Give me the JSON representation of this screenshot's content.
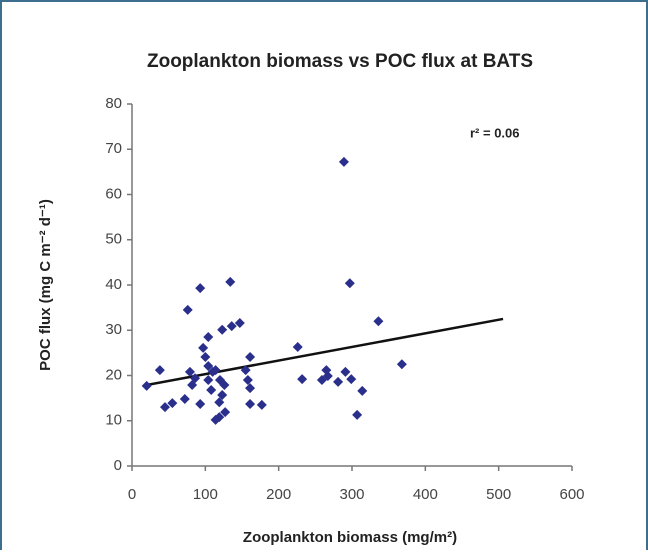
{
  "chart_data": {
    "type": "scatter",
    "title": "Zooplankton biomass vs POC flux at BATS",
    "x_label": "Zooplankton biomass (mg/m²)",
    "y_label": "POC flux (mg C m⁻² d⁻¹)",
    "annotation": "r² = 0.06",
    "color": "#2b2f8c",
    "xlim": [
      0,
      600
    ],
    "xticks": [
      0,
      100,
      200,
      300,
      400,
      500,
      600
    ],
    "ylim": [
      0,
      80
    ],
    "yticks": [
      0,
      10,
      20,
      30,
      40,
      50,
      60,
      70,
      80
    ],
    "x": [
      20,
      38,
      45,
      55,
      72,
      76,
      79,
      82,
      86,
      93,
      93,
      97,
      100,
      104,
      104,
      104,
      108,
      110,
      114,
      114,
      119,
      119,
      120,
      123,
      123,
      126,
      127,
      134,
      136,
      147,
      155,
      158,
      161,
      161,
      161,
      177,
      226,
      232,
      259,
      265,
      267,
      281,
      291,
      289,
      297,
      299,
      307,
      314,
      336,
      368
    ],
    "y": [
      17.7,
      21.2,
      13.0,
      13.9,
      14.8,
      34.5,
      20.8,
      17.9,
      19.4,
      39.3,
      13.7,
      26.1,
      24.1,
      28.5,
      19.0,
      22.1,
      16.8,
      20.8,
      21.2,
      10.2,
      10.8,
      14.1,
      19.0,
      30.1,
      15.7,
      17.9,
      11.9,
      40.7,
      30.9,
      31.6,
      21.2,
      19.0,
      24.1,
      17.2,
      13.7,
      13.5,
      26.3,
      19.2,
      19.0,
      21.2,
      19.9,
      18.6,
      20.8,
      67.2,
      40.4,
      19.2,
      11.3,
      16.6,
      32.0,
      22.5
    ],
    "trend_line": {
      "x": [
        20,
        506
      ],
      "y": [
        17.9,
        32.5
      ],
      "color": "#111111"
    }
  }
}
